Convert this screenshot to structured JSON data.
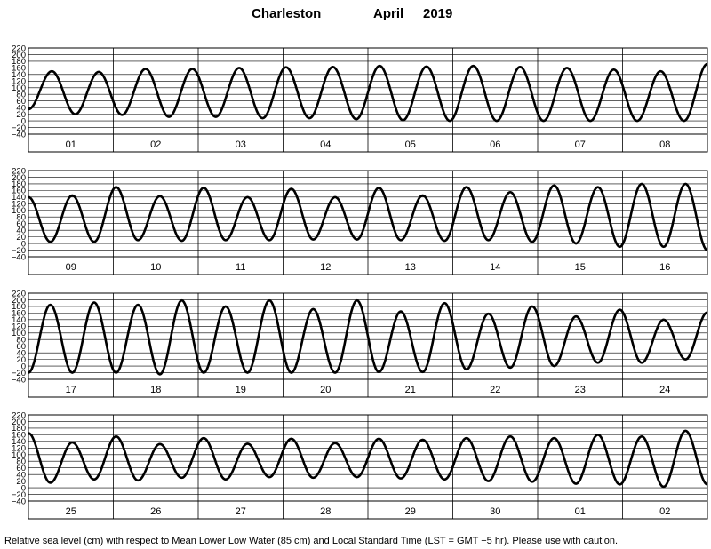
{
  "chart_data": {
    "type": "line",
    "title_station": "Charleston",
    "title_month": "April",
    "title_year": "2019",
    "footnote": "Relative sea level (cm) with respect to Mean Lower Low Water (85 cm) and Local Standard Time (LST = GMT −5 hr). Please use with caution.",
    "y_ticks": [
      "220",
      "200",
      "180",
      "160",
      "140",
      "120",
      "100",
      "80",
      "60",
      "40",
      "20",
      "0",
      "−20",
      "−40"
    ],
    "ylim": [
      -40,
      220
    ],
    "grid": true,
    "panels": [
      {
        "days": [
          "01",
          "02",
          "03",
          "04",
          "05",
          "06",
          "07",
          "08"
        ],
        "series": [
          [
            35,
            150,
            20,
            148,
            18,
            157,
            12,
            157,
            12,
            160,
            8,
            162,
            8,
            163,
            5,
            166,
            2,
            164,
            0,
            166,
            0,
            163,
            0,
            160,
            0,
            155,
            0,
            150,
            0,
            172
          ]
        ]
      },
      {
        "days": [
          "09",
          "10",
          "11",
          "12",
          "13",
          "14",
          "15",
          "16"
        ],
        "series": [
          [
            140,
            5,
            145,
            5,
            170,
            10,
            143,
            8,
            168,
            10,
            140,
            10,
            165,
            12,
            140,
            12,
            168,
            10,
            145,
            8,
            170,
            10,
            155,
            5,
            175,
            0,
            170,
            -10,
            180,
            -10,
            180,
            -20
          ]
        ]
      },
      {
        "days": [
          "17",
          "18",
          "19",
          "20",
          "21",
          "22",
          "23",
          "24"
        ],
        "series": [
          [
            -20,
            185,
            -20,
            192,
            -20,
            185,
            -25,
            198,
            -20,
            180,
            -20,
            198,
            -20,
            172,
            -20,
            198,
            -18,
            165,
            -18,
            190,
            -10,
            158,
            -5,
            180,
            0,
            150,
            10,
            170,
            10,
            140,
            20,
            162
          ]
        ]
      },
      {
        "days": [
          "25",
          "26",
          "27",
          "28",
          "29",
          "30",
          "01",
          "02"
        ],
        "series": [
          [
            165,
            15,
            137,
            25,
            155,
            22,
            132,
            30,
            150,
            25,
            133,
            32,
            148,
            30,
            135,
            32,
            148,
            28,
            145,
            25,
            150,
            20,
            155,
            18,
            150,
            12,
            160,
            10,
            155,
            3,
            172,
            10
          ]
        ]
      }
    ]
  }
}
